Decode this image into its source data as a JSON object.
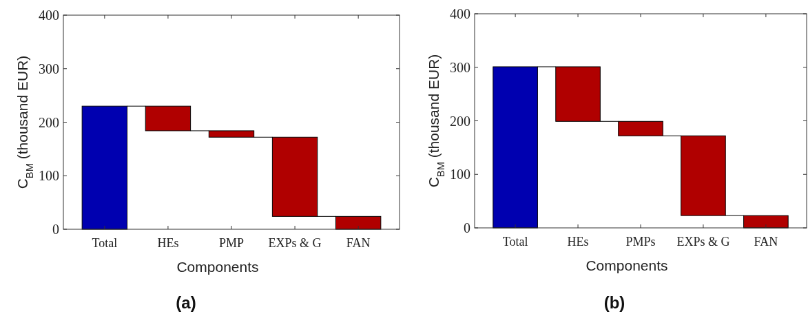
{
  "chart_data": [
    {
      "type": "bar",
      "title": "(a)",
      "xlabel": "Components",
      "ylabel": "C$_{BM}$ (thousand EUR)",
      "categories": [
        "Total",
        "HEs",
        "PMP",
        "EXPs & G",
        "FAN"
      ],
      "values": [
        230,
        46,
        12,
        148,
        24
      ],
      "base": [
        0,
        184,
        172,
        24,
        0
      ],
      "colors": [
        "#0000b0",
        "#b00000",
        "#b00000",
        "#b00000",
        "#b00000"
      ],
      "ylim": [
        0,
        400
      ],
      "yticks": [
        0,
        100,
        200,
        300,
        400
      ]
    },
    {
      "type": "bar",
      "title": "(b)",
      "xlabel": "Components",
      "ylabel": "C$_{BM}$ (thousand EUR)",
      "categories": [
        "Total",
        "HEs",
        "PMPs",
        "EXPs & G",
        "FAN"
      ],
      "values": [
        301,
        102,
        27,
        149,
        23
      ],
      "base": [
        0,
        199,
        172,
        23,
        0
      ],
      "colors": [
        "#0000b0",
        "#b00000",
        "#b00000",
        "#b00000",
        "#b00000"
      ],
      "ylim": [
        0,
        400
      ],
      "yticks": [
        0,
        100,
        200,
        300,
        400
      ]
    }
  ]
}
